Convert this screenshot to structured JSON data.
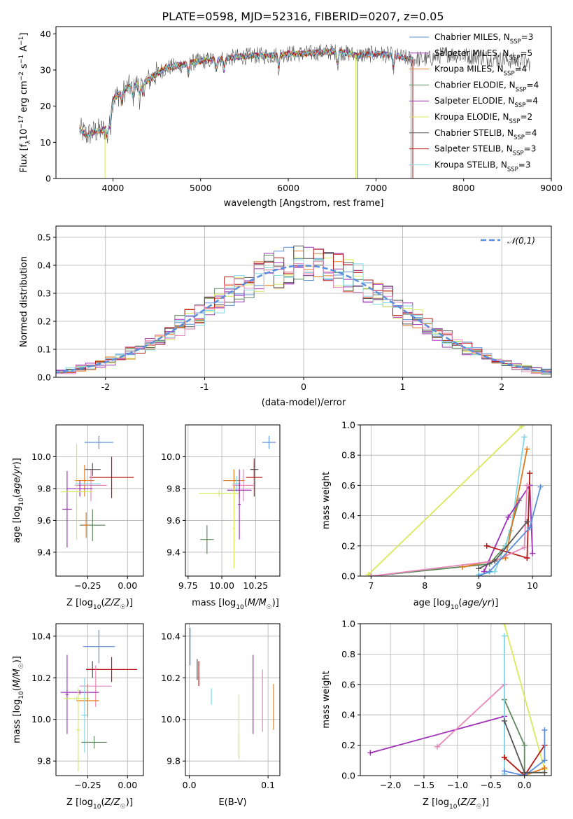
{
  "figure": {
    "title": "PLATE=0598, MJD=52316, FIBERID=0207, z=0.05"
  },
  "colors": {
    "Chabrier MILES": "#5b8fdc",
    "Salpeter MILES": "#993bb0",
    "Kroupa MILES": "#e2791b",
    "Chabrier ELODIE": "#5e8a5e",
    "Salpeter ELODIE": "#a030b8",
    "Kroupa ELODIE": "#d8e95a",
    "Chabrier STELIB": "#555555",
    "Salpeter STELIB": "#b81818",
    "Kroupa STELIB": "#80d8e6",
    "extra_pink": "#e888bb"
  },
  "chart_data": [
    {
      "id": "spectrum",
      "type": "line",
      "title": "PLATE=0598, MJD=52316, FIBERID=0207, z=0.05",
      "xlabel": "wavelength [Angstrom, rest frame]",
      "ylabel": "Flux [f_λ10^-17 erg cm^-2 s^-1 A^-1]",
      "xlim": [
        3350,
        9000
      ],
      "ylim": [
        0,
        42
      ],
      "xticks": [
        4000,
        5000,
        6000,
        7000,
        8000,
        9000
      ],
      "yticks": [
        0,
        10,
        20,
        30,
        40
      ],
      "legend_position": "top-right",
      "legend": [
        {
          "name": "Chabrier MILES, N_SSP=3",
          "main": "Chabrier MILES, N",
          "sub": "SSP",
          "suffix": "=3",
          "color_key": "Chabrier MILES"
        },
        {
          "name": "Salpeter MILES, N_SSP=5",
          "main": "Salpeter MILES, N",
          "sub": "SSP",
          "suffix": "=5",
          "color_key": "Salpeter MILES"
        },
        {
          "name": "Kroupa MILES, N_SSP=4",
          "main": "Kroupa MILES, N",
          "sub": "SSP",
          "suffix": "=4",
          "color_key": "Kroupa MILES"
        },
        {
          "name": "Chabrier ELODIE, N_SSP=4",
          "main": "Chabrier ELODIE, N",
          "sub": "SSP",
          "suffix": "=4",
          "color_key": "Chabrier ELODIE"
        },
        {
          "name": "Salpeter ELODIE, N_SSP=4",
          "main": "Salpeter ELODIE, N",
          "sub": "SSP",
          "suffix": "=4",
          "color_key": "Salpeter ELODIE"
        },
        {
          "name": "Kroupa ELODIE, N_SSP=2",
          "main": "Kroupa ELODIE, N",
          "sub": "SSP",
          "suffix": "=2",
          "color_key": "Kroupa ELODIE"
        },
        {
          "name": "Chabrier STELIB, N_SSP=4",
          "main": "Chabrier STELIB, N",
          "sub": "SSP",
          "suffix": "=4",
          "color_key": "Chabrier STELIB"
        },
        {
          "name": "Salpeter STELIB, N_SSP=3",
          "main": "Salpeter STELIB, N",
          "sub": "SSP",
          "suffix": "=3",
          "color_key": "Salpeter STELIB"
        },
        {
          "name": "Kroupa STELIB, N_SSP=3",
          "main": "Kroupa STELIB, N",
          "sub": "SSP",
          "suffix": "=3",
          "color_key": "Kroupa STELIB"
        }
      ],
      "continuum": {
        "x": [
          3600,
          3700,
          3800,
          3900,
          3950,
          4000,
          4100,
          4200,
          4300,
          4400,
          4500,
          4600,
          4700,
          4800,
          4900,
          5000,
          5200,
          5400,
          5600,
          5800,
          6000,
          6200,
          6400,
          6600,
          6800,
          7000,
          7200,
          7400,
          7600,
          7800,
          8000,
          8200,
          8400,
          8600,
          8750
        ],
        "y": [
          14,
          12,
          13,
          13.5,
          15,
          22,
          24,
          25.5,
          26,
          27,
          29,
          30.5,
          31,
          31.5,
          32,
          32.5,
          33,
          33.5,
          34,
          34,
          34.5,
          34.5,
          35,
          35,
          34,
          34.5,
          34,
          33,
          33,
          34.5,
          34,
          33.5,
          33,
          32.5,
          32
        ]
      },
      "cutoffs": [
        {
          "model": "Kroupa ELODIE",
          "x": 3910
        },
        {
          "model": "Kroupa ELODIE",
          "x": 6770
        },
        {
          "model": "Chabrier ELODIE",
          "x": 6790
        },
        {
          "model": "Salpeter STELIB",
          "x": 7420
        },
        {
          "model": "Kroupa MILES",
          "x": 7400
        }
      ]
    },
    {
      "id": "residuals",
      "type": "histogram",
      "xlabel": "(data-model)/error",
      "ylabel": "Normed distribution",
      "xlim": [
        -2.5,
        2.5
      ],
      "ylim": [
        0,
        0.54
      ],
      "xticks": [
        -2,
        -1,
        0,
        1,
        2
      ],
      "yticks": [
        0.0,
        0.1,
        0.2,
        0.3,
        0.4,
        0.5
      ],
      "grid": true,
      "bin_width": 0.1,
      "legend_position": "top-right",
      "reference": {
        "name": "𝒩(0,1)",
        "mean": 0,
        "sigma": 1,
        "color": "#5b8fdc",
        "style": "dashed"
      },
      "histogram_models": [
        "Chabrier MILES",
        "Salpeter MILES",
        "Kroupa MILES",
        "Chabrier ELODIE",
        "Salpeter ELODIE",
        "Kroupa ELODIE",
        "Chabrier STELIB",
        "Salpeter STELIB",
        "Kroupa STELIB",
        "extra_pink"
      ]
    },
    {
      "id": "age_vs_Z",
      "type": "errorbar",
      "xlabel": "Z [log10(Z/Z☉)]",
      "ylabel": "age [log10(age/yr)]",
      "xlim": [
        -0.45,
        0.1
      ],
      "ylim": [
        9.25,
        10.2
      ],
      "xticks": [
        -0.25,
        0.0
      ],
      "xtick_labels": [
        "−0.25",
        "0.00"
      ],
      "yticks": [
        9.4,
        9.6,
        9.8,
        10.0
      ],
      "grid": true,
      "points": [
        {
          "m": "Chabrier MILES",
          "x": -0.18,
          "y": 10.09,
          "xe": 0.09,
          "ye": 0.04
        },
        {
          "m": "Chabrier STELIB",
          "x": -0.22,
          "y": 9.92,
          "xe": 0.05,
          "ye": 0.04
        },
        {
          "m": "Salpeter STELIB",
          "x": -0.1,
          "y": 9.87,
          "xe": 0.14,
          "ye": 0.13
        },
        {
          "m": "Kroupa MILES",
          "x": -0.27,
          "y": 9.85,
          "xe": 0.06,
          "ye": 0.1
        },
        {
          "m": "Kroupa STELIB",
          "x": -0.25,
          "y": 9.83,
          "xe": 0.08,
          "ye": 0.05
        },
        {
          "m": "extra_pink",
          "x": -0.23,
          "y": 9.82,
          "xe": 0.1,
          "ye": 0.1
        },
        {
          "m": "Salpeter ELODIE",
          "x": -0.3,
          "y": 9.8,
          "xe": 0.08,
          "ye": 0.05
        },
        {
          "m": "Salpeter MILES",
          "x": -0.38,
          "y": 9.67,
          "xe": 0.03,
          "ye": 0.24
        },
        {
          "m": "Kroupa ELODIE",
          "x": -0.32,
          "y": 9.78,
          "xe": 0.1,
          "ye": 0.3
        },
        {
          "m": "Chabrier ELODIE",
          "x": -0.22,
          "y": 9.57,
          "xe": 0.08,
          "ye": 0.1
        },
        {
          "m": "Kroupa MILES",
          "x": -0.26,
          "y": 9.57,
          "xe": 0.02,
          "ye": 0.08
        }
      ]
    },
    {
      "id": "age_vs_mass",
      "type": "errorbar",
      "xlabel": "mass [log10(M/M☉)]",
      "xlim": [
        9.73,
        10.43
      ],
      "ylim": [
        9.25,
        10.2
      ],
      "xticks": [
        9.75,
        10.0,
        10.25
      ],
      "xtick_labels": [
        "9.75",
        "10.00",
        "10.25"
      ],
      "yticks": [
        9.4,
        9.6,
        9.8,
        10.0
      ],
      "grid": true,
      "points": [
        {
          "m": "Chabrier MILES",
          "x": 10.35,
          "y": 10.09,
          "xe": 0.05,
          "ye": 0.04
        },
        {
          "m": "Chabrier STELIB",
          "x": 10.24,
          "y": 9.92,
          "xe": 0.03,
          "ye": 0.05
        },
        {
          "m": "Salpeter STELIB",
          "x": 10.24,
          "y": 9.87,
          "xe": 0.06,
          "ye": 0.12
        },
        {
          "m": "Kroupa MILES",
          "x": 10.09,
          "y": 9.85,
          "xe": 0.08,
          "ye": 0.07
        },
        {
          "m": "Kroupa STELIB",
          "x": 10.11,
          "y": 9.83,
          "xe": 0.03,
          "ye": 0.05
        },
        {
          "m": "extra_pink",
          "x": 10.16,
          "y": 9.82,
          "xe": 0.08,
          "ye": 0.1
        },
        {
          "m": "Salpeter ELODIE",
          "x": 10.13,
          "y": 9.79,
          "xe": 0.09,
          "ye": 0.05
        },
        {
          "m": "Kroupa ELODIE",
          "x": 9.98,
          "y": 9.77,
          "xe": 0.15,
          "ye": 0.02
        },
        {
          "m": "Salpeter MILES",
          "x": 10.13,
          "y": 9.7,
          "xe": 0.01,
          "ye": 0.22
        },
        {
          "m": "Kroupa ELODIE",
          "x": 10.09,
          "y": 9.55,
          "xe": 0.01,
          "ye": 0.25
        },
        {
          "m": "Chabrier ELODIE",
          "x": 9.89,
          "y": 9.48,
          "xe": 0.05,
          "ye": 0.09
        }
      ]
    },
    {
      "id": "massweight_vs_age",
      "type": "line",
      "xlabel": "age [log10(age/yr)]",
      "ylabel": "mass weight",
      "xlim": [
        6.8,
        10.35
      ],
      "ylim": [
        0,
        1.0
      ],
      "xticks": [
        7,
        8,
        9,
        10
      ],
      "yticks": [
        0.0,
        0.2,
        0.4,
        0.6,
        0.8,
        1.0
      ],
      "grid": true,
      "series": [
        {
          "m": "Kroupa ELODIE",
          "x": [
            6.95,
            9.8
          ],
          "y": [
            0.01,
            0.99
          ]
        },
        {
          "m": "Chabrier ELODIE",
          "x": [
            7.0,
            9.2,
            9.5,
            9.75
          ],
          "y": [
            0.0,
            0.08,
            0.2,
            0.5
          ]
        },
        {
          "m": "Kroupa STELIB",
          "x": [
            9.0,
            9.3,
            9.6,
            9.85
          ],
          "y": [
            0.01,
            0.03,
            0.3,
            0.92
          ]
        },
        {
          "m": "Kroupa MILES",
          "x": [
            8.7,
            9.5,
            9.9
          ],
          "y": [
            0.06,
            0.12,
            0.84
          ]
        },
        {
          "m": "Salpeter ELODIE",
          "x": [
            9.1,
            9.55,
            9.95,
            10.0
          ],
          "y": [
            0.03,
            0.39,
            0.6,
            0.15
          ]
        },
        {
          "m": "Salpeter STELIB",
          "x": [
            9.15,
            9.9,
            9.95,
            9.9
          ],
          "y": [
            0.2,
            0.12,
            0.68,
            0.12
          ]
        },
        {
          "m": "extra_pink",
          "x": [
            7.0,
            9.3,
            9.85,
            9.9
          ],
          "y": [
            0.0,
            0.1,
            0.19,
            0.6
          ]
        },
        {
          "m": "Chabrier STELIB",
          "x": [
            9.0,
            9.3,
            9.9
          ],
          "y": [
            0.05,
            0.1,
            0.36
          ]
        },
        {
          "m": "Chabrier MILES",
          "x": [
            9.0,
            9.2,
            9.95,
            10.15
          ],
          "y": [
            0.0,
            0.03,
            0.32,
            0.59
          ]
        }
      ]
    },
    {
      "id": "mass_vs_Z",
      "type": "errorbar",
      "xlabel": "Z [log10(Z/Z☉)]",
      "ylabel": "mass [log10(M/M☉)]",
      "xlim": [
        -0.45,
        0.1
      ],
      "ylim": [
        9.73,
        10.46
      ],
      "xticks": [
        -0.25,
        0.0
      ],
      "xtick_labels": [
        "−0.25",
        "0.00"
      ],
      "yticks": [
        9.8,
        10.0,
        10.2,
        10.4
      ],
      "grid": true,
      "points": [
        {
          "m": "Chabrier MILES",
          "x": -0.18,
          "y": 10.35,
          "xe": 0.1,
          "ye": 0.08
        },
        {
          "m": "Chabrier STELIB",
          "x": -0.22,
          "y": 10.24,
          "xe": 0.04,
          "ye": 0.04
        },
        {
          "m": "Salpeter STELIB",
          "x": -0.1,
          "y": 10.24,
          "xe": 0.16,
          "ye": 0.06
        },
        {
          "m": "extra_pink",
          "x": -0.2,
          "y": 10.16,
          "xe": 0.1,
          "ye": 0.1
        },
        {
          "m": "Salpeter ELODIE",
          "x": -0.3,
          "y": 10.13,
          "xe": 0.12,
          "ye": 0.01
        },
        {
          "m": "Salpeter MILES",
          "x": -0.38,
          "y": 10.12,
          "xe": 0.01,
          "ye": 0.19
        },
        {
          "m": "Kroupa ELODIE",
          "x": -0.32,
          "y": 10.1,
          "xe": 0.08,
          "ye": 0.01
        },
        {
          "m": "Kroupa MILES",
          "x": -0.25,
          "y": 10.09,
          "xe": 0.07,
          "ye": 0.08
        },
        {
          "m": "Kroupa STELIB",
          "x": -0.27,
          "y": 10.02,
          "xe": 0.02,
          "ye": 0.18
        },
        {
          "m": "Kroupa ELODIE",
          "x": -0.31,
          "y": 9.95,
          "xe": 0.01,
          "ye": 0.2
        },
        {
          "m": "Chabrier ELODIE",
          "x": -0.21,
          "y": 9.89,
          "xe": 0.08,
          "ye": 0.03
        }
      ]
    },
    {
      "id": "mass_vs_ebv",
      "type": "errorbar",
      "xlabel": "E(B-V)",
      "xlim": [
        -0.005,
        0.115
      ],
      "ylim": [
        9.73,
        10.46
      ],
      "xticks": [
        0.0,
        0.1
      ],
      "xtick_labels": [
        "0.0",
        "0.1"
      ],
      "yticks": [
        9.8,
        10.0,
        10.2,
        10.4
      ],
      "grid": true,
      "points": [
        {
          "m": "Chabrier MILES",
          "x": 0.001,
          "y": 10.35,
          "xe": 0,
          "ye": 0.09
        },
        {
          "m": "Chabrier STELIB",
          "x": 0.01,
          "y": 10.24,
          "xe": 0,
          "ye": 0.05
        },
        {
          "m": "Salpeter STELIB",
          "x": 0.012,
          "y": 10.22,
          "xe": 0,
          "ye": 0.06
        },
        {
          "m": "Kroupa STELIB",
          "x": 0.028,
          "y": 10.11,
          "xe": 0,
          "ye": 0.04
        },
        {
          "m": "Kroupa ELODIE",
          "x": 0.063,
          "y": 9.97,
          "xe": 0,
          "ye": 0.15
        },
        {
          "m": "Kroupa ELODIE",
          "x": 0.063,
          "y": 9.87,
          "xe": 0,
          "ye": 0.06
        },
        {
          "m": "Salpeter ELODIE",
          "x": 0.081,
          "y": 10.12,
          "xe": 0,
          "ye": 0.19
        },
        {
          "m": "extra_pink",
          "x": 0.093,
          "y": 10.09,
          "xe": 0,
          "ye": 0.15
        },
        {
          "m": "Kroupa MILES",
          "x": 0.107,
          "y": 10.06,
          "xe": 0,
          "ye": 0.11
        }
      ]
    },
    {
      "id": "massweight_vs_Z",
      "type": "line",
      "xlabel": "Z [log10(Z/Z☉)]",
      "ylabel": "mass weight",
      "xlim": [
        -2.45,
        0.4
      ],
      "ylim": [
        0,
        1.0
      ],
      "xticks": [
        -2.0,
        -1.5,
        -1.0,
        -0.5,
        0.0
      ],
      "xtick_labels": [
        "−2.0",
        "−1.5",
        "−1.0",
        "−0.5",
        "0.0"
      ],
      "yticks": [
        0.0,
        0.2,
        0.4,
        0.6,
        0.8,
        1.0
      ],
      "grid": true,
      "series": [
        {
          "m": "Salpeter ELODIE",
          "x": [
            -2.3,
            -0.3
          ],
          "y": [
            0.15,
            0.39
          ]
        },
        {
          "m": "extra_pink",
          "x": [
            -1.3,
            -0.3,
            -0.3
          ],
          "y": [
            0.19,
            0.6,
            0.01
          ]
        },
        {
          "m": "Kroupa ELODIE",
          "x": [
            -0.3,
            0.3
          ],
          "y": [
            1.0,
            0.04
          ]
        },
        {
          "m": "Chabrier ELODIE",
          "x": [
            -0.3,
            -0.3,
            0.0,
            0.0
          ],
          "y": [
            0.5,
            0.5,
            0.2,
            0.0
          ]
        },
        {
          "m": "Kroupa STELIB",
          "x": [
            -0.3,
            -0.3
          ],
          "y": [
            0.92,
            0.01
          ]
        },
        {
          "m": "Kroupa MILES",
          "x": [
            -0.3,
            0.0,
            0.3
          ],
          "y": [
            0.12,
            0.0,
            0.05
          ]
        },
        {
          "m": "Salpeter STELIB",
          "x": [
            -0.3,
            0.0,
            0.3
          ],
          "y": [
            0.12,
            0.0,
            0.2
          ]
        },
        {
          "m": "Chabrier MILES",
          "x": [
            -0.3,
            0.0,
            0.3,
            0.3
          ],
          "y": [
            0.03,
            0.0,
            0.1,
            0.3
          ]
        },
        {
          "m": "Chabrier STELIB",
          "x": [
            -0.3,
            0.0,
            0.3
          ],
          "y": [
            0.36,
            0.02,
            0.02
          ]
        }
      ]
    }
  ]
}
